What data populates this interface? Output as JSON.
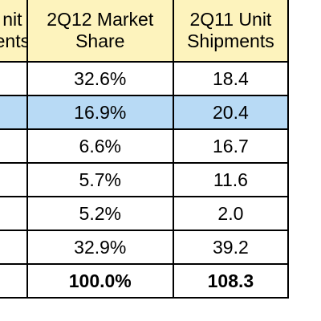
{
  "table": {
    "header": [
      {
        "line1": "nit",
        "line2": "ents"
      },
      {
        "line1": "2Q12 Market",
        "line2": "Share"
      },
      {
        "line1": "2Q11 Unit",
        "line2": "Shipments"
      }
    ],
    "rows": [
      {
        "col0": "",
        "share": "32.6%",
        "shipments": "18.4",
        "highlight": false
      },
      {
        "col0": "",
        "share": "16.9%",
        "shipments": "20.4",
        "highlight": true
      },
      {
        "col0": "",
        "share": "6.6%",
        "shipments": "16.7",
        "highlight": false
      },
      {
        "col0": "",
        "share": "5.7%",
        "shipments": "11.6",
        "highlight": false
      },
      {
        "col0": "",
        "share": "5.2%",
        "shipments": "2.0",
        "highlight": false
      },
      {
        "col0": "",
        "share": "32.9%",
        "shipments": "39.2",
        "highlight": false
      }
    ],
    "total": {
      "col0": "",
      "share": "100.0%",
      "shipments": "108.3"
    }
  },
  "colors": {
    "header_background": "#fdf3bd",
    "highlight_background": "#b8daf5",
    "border": "#000000"
  }
}
